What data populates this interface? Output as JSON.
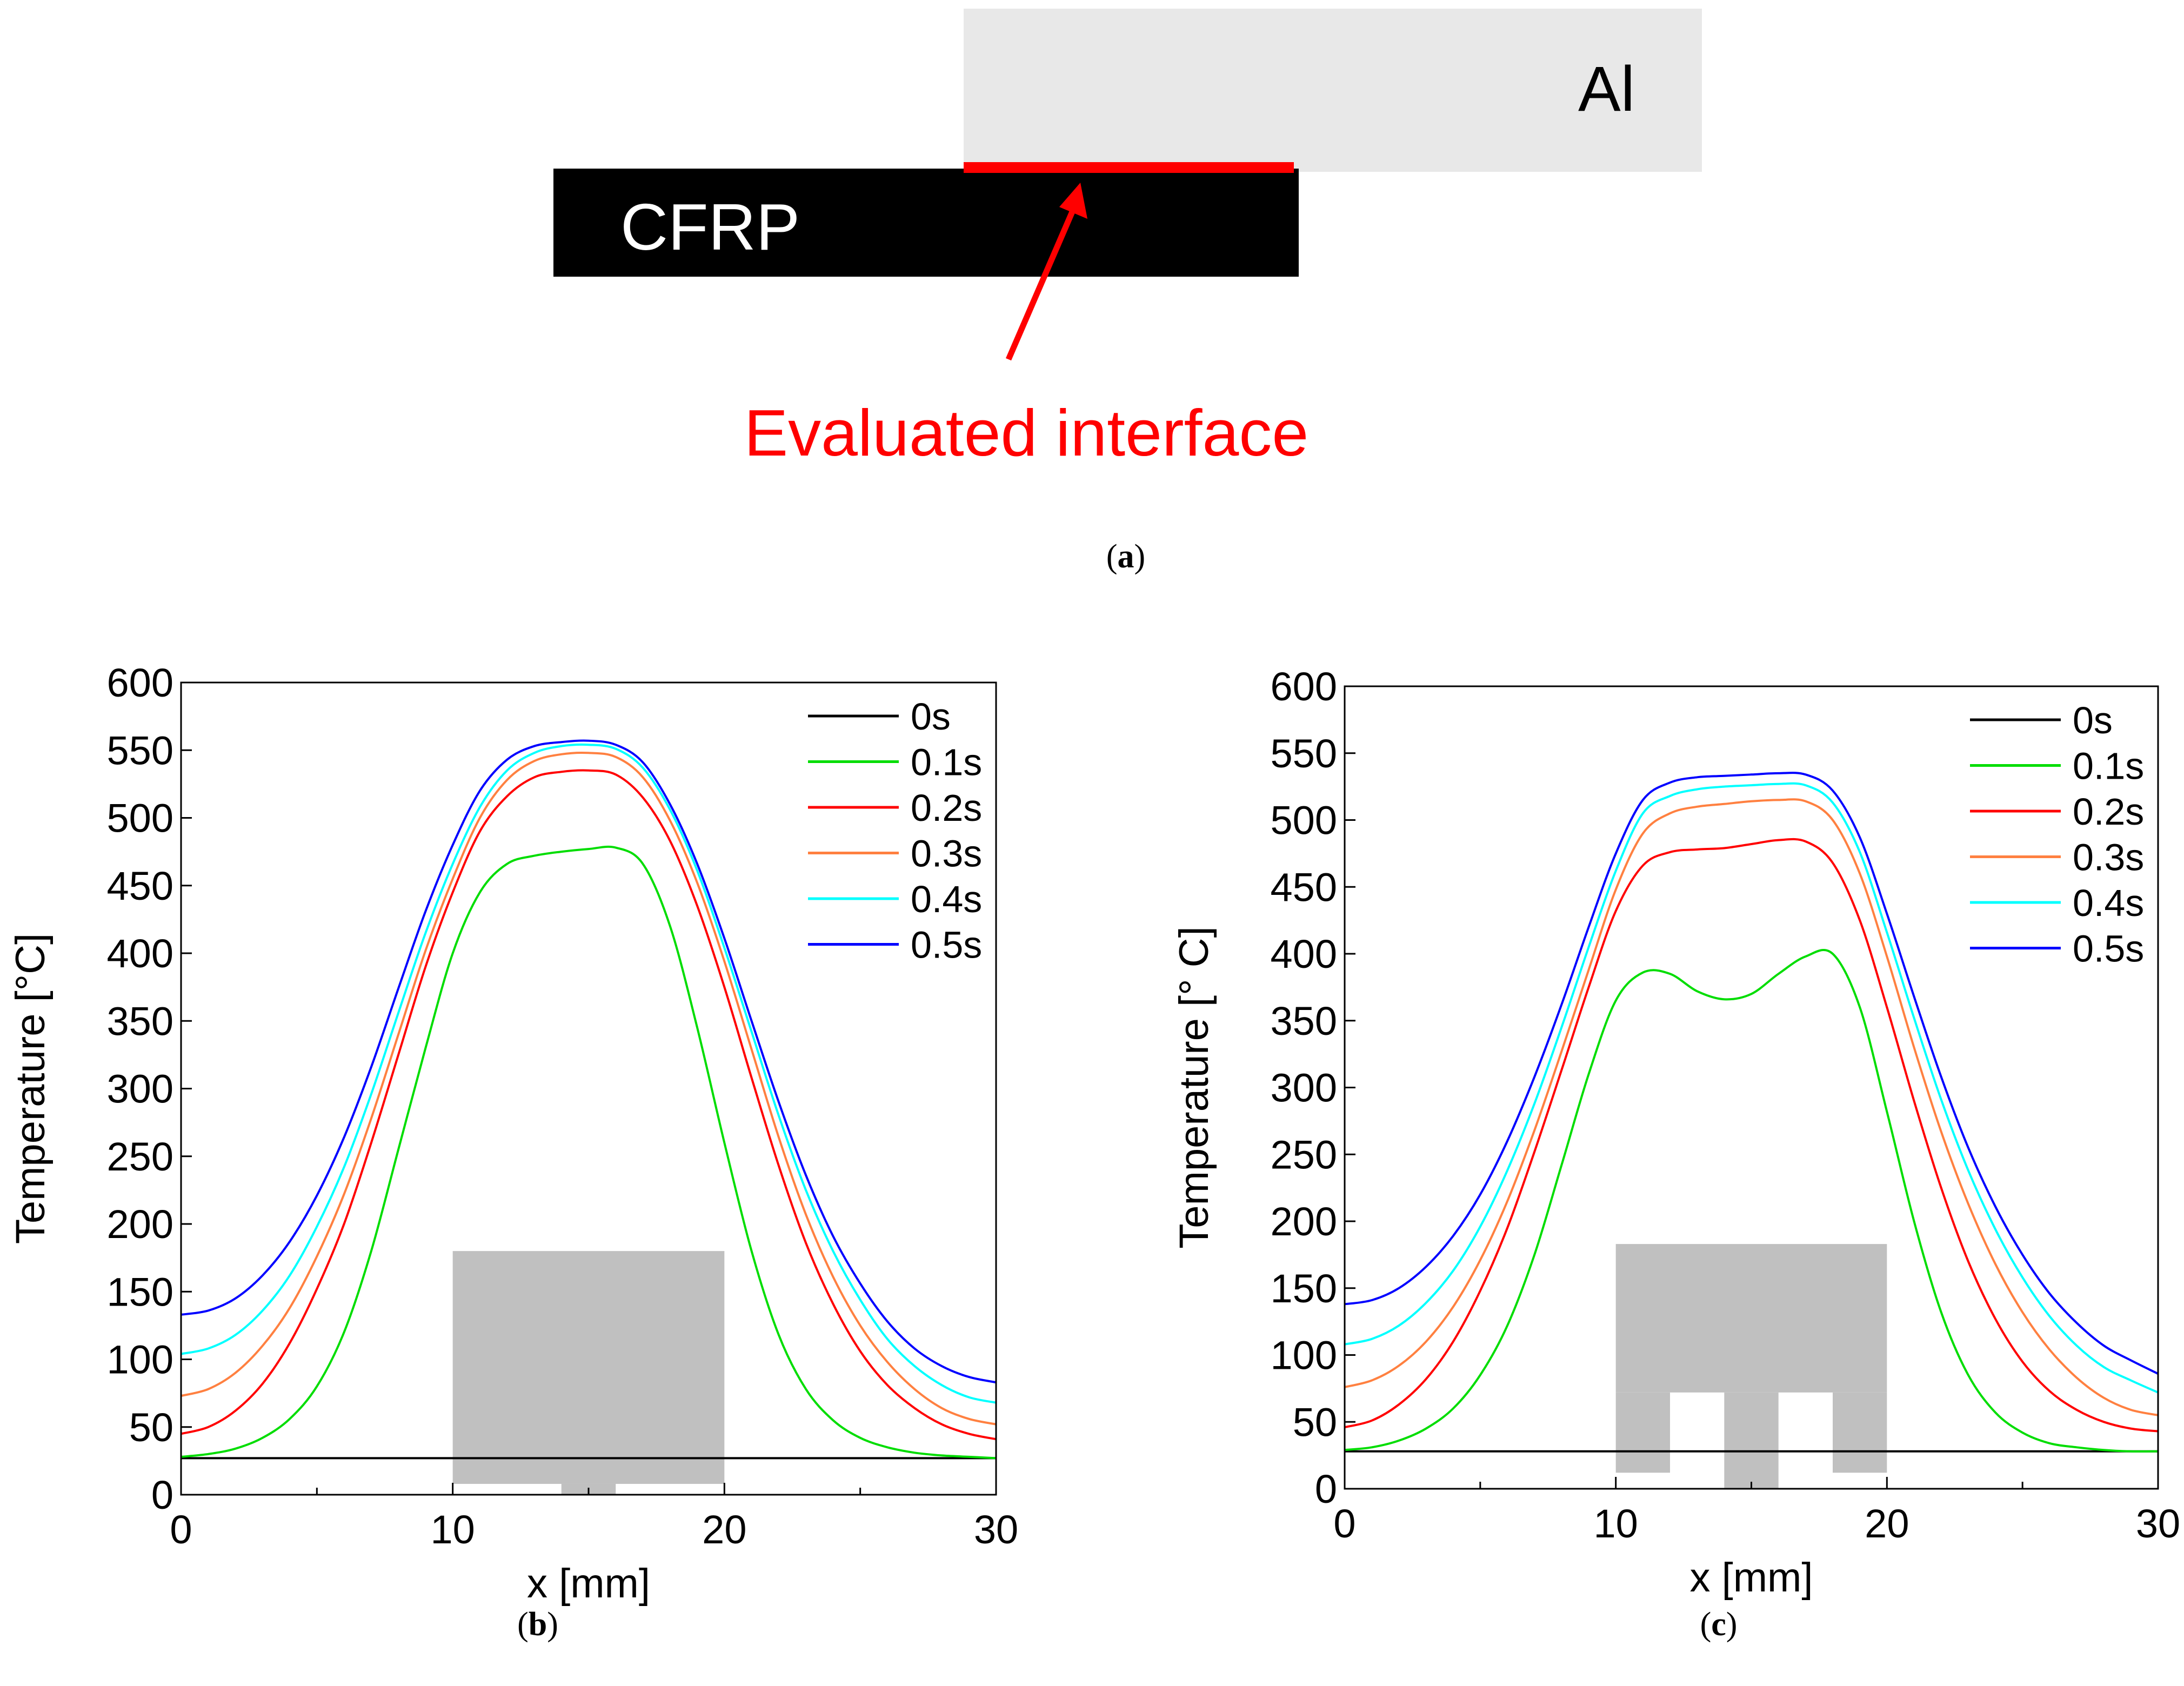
{
  "diagram": {
    "al_label": "Al",
    "cfrp_label": "CFRP",
    "interface_label": "Evaluated interface",
    "caption_open": "(",
    "caption_letter": "a",
    "caption_close": ")",
    "colors": {
      "al": "#e8e8e8",
      "cfrp": "#000000",
      "interface": "#ff0000"
    }
  },
  "chart_data": [
    {
      "type": "line",
      "panel_letter": "b",
      "xlabel": "x [mm]",
      "ylabel": "Temperature [°C]",
      "xlim": [
        0,
        30
      ],
      "ylim": [
        0,
        600
      ],
      "xticks": [
        0,
        10,
        20,
        30
      ],
      "yticks": [
        0,
        50,
        100,
        150,
        200,
        250,
        300,
        350,
        400,
        450,
        500,
        550,
        600
      ],
      "legend_position": "top-right",
      "tool_shape": "single-pin",
      "series": [
        {
          "name": "0s",
          "color": "#000000",
          "x": [
            0,
            30
          ],
          "y": [
            27,
            27
          ]
        },
        {
          "name": "0.1s",
          "color": "#00dd00",
          "x": [
            0,
            1,
            2,
            3,
            4,
            5,
            6,
            7,
            8,
            9,
            10,
            11,
            12,
            13,
            14,
            15,
            16,
            17,
            18,
            19,
            20,
            21,
            22,
            23,
            24,
            25,
            26,
            27,
            28,
            29,
            30
          ],
          "y": [
            28,
            30,
            34,
            42,
            56,
            80,
            120,
            180,
            255,
            330,
            400,
            445,
            466,
            472,
            475,
            477,
            478,
            466,
            420,
            345,
            260,
            180,
            118,
            78,
            55,
            42,
            35,
            31,
            29,
            28,
            27
          ]
        },
        {
          "name": "0.2s",
          "color": "#ff0000",
          "x": [
            0,
            1,
            2,
            3,
            4,
            5,
            6,
            7,
            8,
            9,
            10,
            11,
            12,
            13,
            14,
            15,
            16,
            17,
            18,
            19,
            20,
            21,
            22,
            23,
            24,
            25,
            26,
            27,
            28,
            29,
            30
          ],
          "y": [
            45,
            50,
            62,
            82,
            112,
            152,
            200,
            260,
            325,
            390,
            445,
            490,
            516,
            530,
            534,
            535,
            532,
            515,
            483,
            435,
            375,
            308,
            243,
            186,
            141,
            106,
            81,
            64,
            52,
            45,
            41
          ]
        },
        {
          "name": "0.3s",
          "color": "#ff8040",
          "x": [
            0,
            1,
            2,
            3,
            4,
            5,
            6,
            7,
            8,
            9,
            10,
            11,
            12,
            13,
            14,
            15,
            16,
            17,
            18,
            19,
            20,
            21,
            22,
            23,
            24,
            25,
            26,
            27,
            28,
            29,
            30
          ],
          "y": [
            73,
            78,
            90,
            110,
            138,
            176,
            222,
            278,
            340,
            402,
            455,
            500,
            528,
            542,
            547,
            548,
            545,
            530,
            498,
            452,
            394,
            329,
            264,
            207,
            161,
            125,
            98,
            78,
            64,
            56,
            52
          ]
        },
        {
          "name": "0.4s",
          "color": "#00ffff",
          "x": [
            0,
            1,
            2,
            3,
            4,
            5,
            6,
            7,
            8,
            9,
            10,
            11,
            12,
            13,
            14,
            15,
            16,
            17,
            18,
            19,
            20,
            21,
            22,
            23,
            24,
            25,
            26,
            27,
            28,
            29,
            30
          ],
          "y": [
            104,
            108,
            118,
            136,
            162,
            198,
            242,
            296,
            356,
            415,
            466,
            508,
            535,
            548,
            553,
            554,
            551,
            537,
            506,
            461,
            404,
            342,
            280,
            225,
            180,
            144,
            115,
            95,
            81,
            72,
            68
          ]
        },
        {
          "name": "0.5s",
          "color": "#0000ff",
          "x": [
            0,
            1,
            2,
            3,
            4,
            5,
            6,
            7,
            8,
            9,
            10,
            11,
            12,
            13,
            14,
            15,
            16,
            17,
            18,
            19,
            20,
            21,
            22,
            23,
            24,
            25,
            26,
            27,
            28,
            29,
            30
          ],
          "y": [
            133,
            136,
            145,
            162,
            187,
            221,
            264,
            316,
            374,
            431,
            480,
            520,
            543,
            553,
            556,
            557,
            554,
            541,
            510,
            466,
            411,
            350,
            290,
            236,
            191,
            156,
            128,
            108,
            95,
            87,
            83
          ]
        }
      ]
    },
    {
      "type": "line",
      "panel_letter": "c",
      "xlabel": "x [mm]",
      "ylabel": "Temperature [°  C]",
      "xlim": [
        0,
        30
      ],
      "ylim": [
        0,
        600
      ],
      "xticks": [
        0,
        10,
        20,
        30
      ],
      "yticks": [
        0,
        50,
        100,
        150,
        200,
        250,
        300,
        350,
        400,
        450,
        500,
        550,
        600
      ],
      "legend_position": "top-right",
      "tool_shape": "three-pin",
      "series": [
        {
          "name": "0s",
          "color": "#000000",
          "x": [
            0,
            30
          ],
          "y": [
            28,
            28
          ]
        },
        {
          "name": "0.1s",
          "color": "#00dd00",
          "x": [
            0,
            1,
            2,
            3,
            4,
            5,
            6,
            7,
            8,
            9,
            10,
            11,
            12,
            13,
            14,
            15,
            16,
            17,
            18,
            19,
            20,
            21,
            22,
            23,
            24,
            25,
            26,
            27,
            28,
            29,
            30
          ],
          "y": [
            29,
            31,
            36,
            45,
            60,
            85,
            122,
            175,
            242,
            310,
            365,
            386,
            385,
            372,
            366,
            370,
            385,
            398,
            400,
            360,
            282,
            200,
            132,
            85,
            57,
            42,
            34,
            31,
            29,
            28,
            28
          ]
        },
        {
          "name": "0.2s",
          "color": "#ff0000",
          "x": [
            0,
            1,
            2,
            3,
            4,
            5,
            6,
            7,
            8,
            9,
            10,
            11,
            12,
            13,
            14,
            15,
            16,
            17,
            18,
            19,
            20,
            21,
            22,
            23,
            24,
            25,
            26,
            27,
            28,
            29,
            30
          ],
          "y": [
            46,
            51,
            63,
            82,
            110,
            148,
            195,
            252,
            313,
            375,
            432,
            466,
            476,
            478,
            479,
            482,
            485,
            484,
            468,
            425,
            360,
            290,
            225,
            170,
            127,
            95,
            73,
            59,
            50,
            45,
            43
          ]
        },
        {
          "name": "0.3s",
          "color": "#ff8040",
          "x": [
            0,
            1,
            2,
            3,
            4,
            5,
            6,
            7,
            8,
            9,
            10,
            11,
            12,
            13,
            14,
            15,
            16,
            17,
            18,
            19,
            20,
            21,
            22,
            23,
            24,
            25,
            26,
            27,
            28,
            29,
            30
          ],
          "y": [
            76,
            81,
            92,
            110,
            136,
            171,
            215,
            268,
            327,
            388,
            448,
            490,
            505,
            510,
            512,
            514,
            515,
            514,
            500,
            460,
            398,
            330,
            267,
            213,
            168,
            132,
            104,
            83,
            68,
            59,
            55
          ]
        },
        {
          "name": "0.4s",
          "color": "#00ffff",
          "x": [
            0,
            1,
            2,
            3,
            4,
            5,
            6,
            7,
            8,
            9,
            10,
            11,
            12,
            13,
            14,
            15,
            16,
            17,
            18,
            19,
            20,
            21,
            22,
            23,
            24,
            25,
            26,
            27,
            28,
            29,
            30
          ],
          "y": [
            108,
            112,
            122,
            139,
            163,
            196,
            238,
            288,
            345,
            405,
            462,
            505,
            518,
            523,
            525,
            526,
            527,
            526,
            513,
            476,
            416,
            352,
            291,
            238,
            194,
            158,
            129,
            107,
            91,
            81,
            72
          ]
        },
        {
          "name": "0.5s",
          "color": "#0000ff",
          "x": [
            0,
            1,
            2,
            3,
            4,
            5,
            6,
            7,
            8,
            9,
            10,
            11,
            12,
            13,
            14,
            15,
            16,
            17,
            18,
            19,
            20,
            21,
            22,
            23,
            24,
            25,
            26,
            27,
            28,
            29,
            30
          ],
          "y": [
            138,
            141,
            150,
            166,
            189,
            220,
            260,
            308,
            362,
            420,
            475,
            515,
            528,
            532,
            533,
            534,
            535,
            534,
            522,
            487,
            430,
            368,
            308,
            255,
            211,
            175,
            146,
            124,
            107,
            96,
            86
          ]
        }
      ]
    }
  ]
}
